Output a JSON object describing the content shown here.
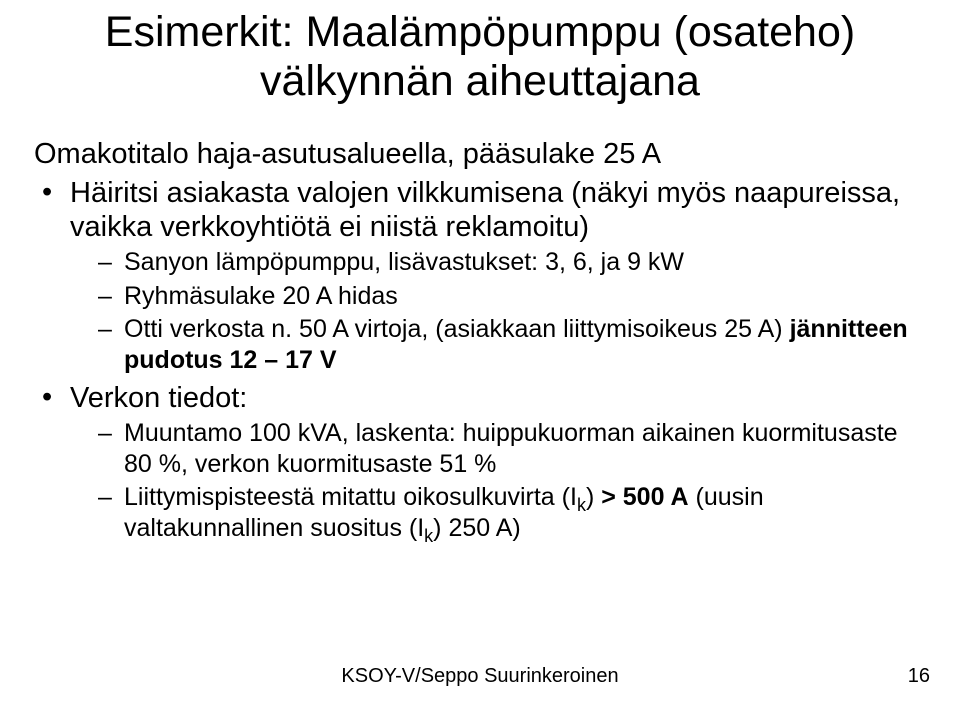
{
  "title_line1": "Esimerkit: Maalämpöpumppu (osateho)",
  "title_line2": "välkynnän aiheuttajana",
  "intro_line": "Omakotitalo haja-asutusalueella, pääsulake 25 A",
  "bullets": {
    "b1": "Häiritsi asiakasta valojen vilkkumisena (näkyi myös naapureissa, vaikka verkkoyhtiötä ei niistä reklamoitu)",
    "b1_sub1": "Sanyon lämpöpumppu, lisävastukset: 3, 6, ja 9 kW",
    "b1_sub2": "Ryhmäsulake 20 A hidas",
    "b1_sub3_a": "Otti verkosta n. 50 A virtoja, (asiakkaan liittymisoikeus 25 A) ",
    "b1_sub3_b": "jännitteen pudotus 12 – 17 V",
    "b2": "Verkon tiedot:",
    "b2_sub1": "Muuntamo 100 kVA, laskenta: huippukuorman aikainen kuormitusaste 80 %, verkon kuormitusaste 51 %",
    "b2_sub2_a": "Liittymispisteestä mitattu oikosulkuvirta (I",
    "b2_sub2_k": "k",
    "b2_sub2_b": ") ",
    "b2_sub2_bold": "> 500 A",
    "b2_sub2_c": " (uusin valtakunnallinen suositus (I",
    "b2_sub2_k2": "k",
    "b2_sub2_d": ") 250 A)"
  },
  "footer": "KSOY-V/Seppo Suurinkeroinen",
  "page_number": "16"
}
